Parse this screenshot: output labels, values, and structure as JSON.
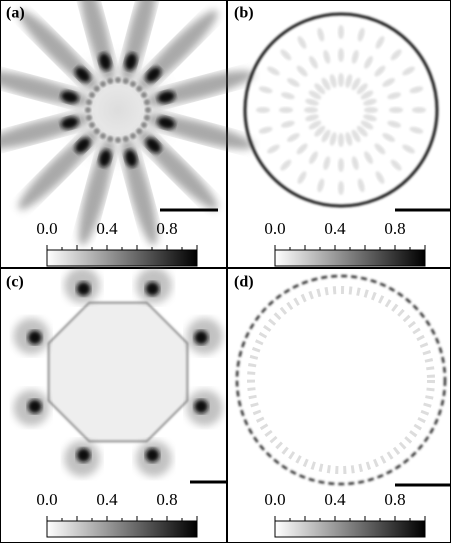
{
  "panels": [
    {
      "label": "(a)",
      "colorbar_ticks": [
        "0.0",
        "0.4",
        "0.8"
      ]
    },
    {
      "label": "(b)",
      "colorbar_ticks": [
        "0.0",
        "0.4",
        "0.8"
      ]
    },
    {
      "label": "(c)",
      "colorbar_ticks": [
        "0.0",
        "0.4",
        "0.8"
      ]
    },
    {
      "label": "(d)",
      "colorbar_ticks": [
        "0.0",
        "0.4",
        "0.8"
      ]
    }
  ]
}
